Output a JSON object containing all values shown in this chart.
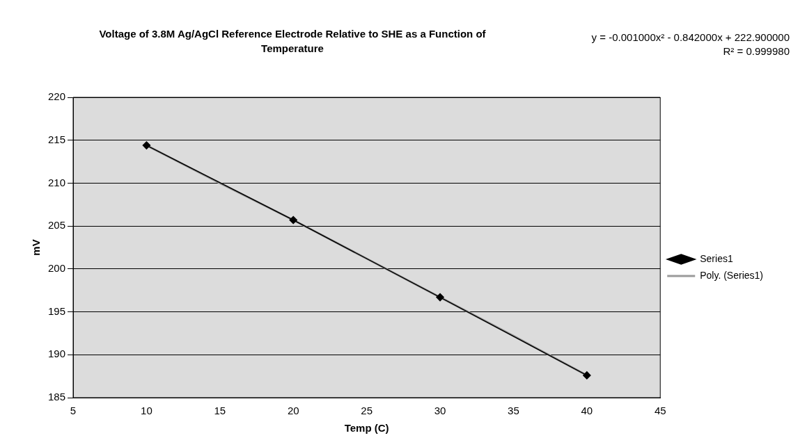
{
  "chart_data": {
    "type": "line",
    "title": "Voltage of 3.8M Ag/AgCl Reference Electrode Relative to SHE as a Function of Temperature",
    "xlabel": "Temp (C)",
    "ylabel": "mV",
    "x": [
      10,
      20,
      30,
      40
    ],
    "series": [
      {
        "name": "Series1",
        "color": "#000000",
        "marker": "diamond",
        "values": [
          214.4,
          205.7,
          196.7,
          187.6
        ]
      },
      {
        "name": "Poly. (Series1)",
        "color": "#9a9a9a",
        "marker": "none",
        "x": [
          10,
          15,
          20,
          25,
          30,
          35,
          40
        ],
        "values": [
          214.4,
          210.0,
          205.7,
          201.2,
          196.7,
          192.2,
          187.6
        ]
      }
    ],
    "annotations": [
      "y = -0.001000x² - 0.842000x + 222.900000",
      "R² = 0.999980"
    ],
    "xlim": [
      5,
      45
    ],
    "xticks": [
      5,
      10,
      15,
      20,
      25,
      30,
      35,
      40,
      45
    ],
    "ylim": [
      185,
      220
    ],
    "yticks": [
      185,
      190,
      195,
      200,
      205,
      210,
      215,
      220
    ],
    "grid": "y",
    "legend": "right"
  }
}
